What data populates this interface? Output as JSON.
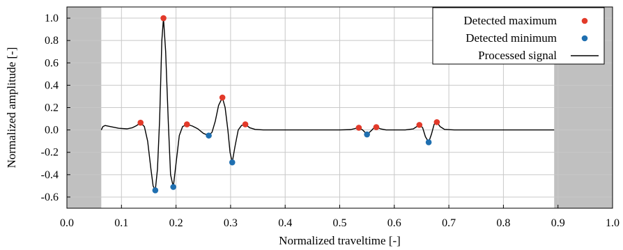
{
  "chart_data": {
    "type": "line",
    "xlabel": "Normalized traveltime [-]",
    "ylabel": "Normalized amplitude [-]",
    "xlim": [
      0.0,
      1.0
    ],
    "ylim": [
      -0.7,
      1.1
    ],
    "xticks": [
      0.0,
      0.1,
      0.2,
      0.3,
      0.4,
      0.5,
      0.6,
      0.7,
      0.8,
      0.9,
      1.0
    ],
    "xtick_labels": [
      "0.0",
      "0.1",
      "0.2",
      "0.3",
      "0.4",
      "0.5",
      "0.6",
      "0.7",
      "0.8",
      "0.9",
      "1.0"
    ],
    "yticks": [
      -0.6,
      -0.4,
      -0.2,
      0.0,
      0.2,
      0.4,
      0.6,
      0.8,
      1.0
    ],
    "ytick_labels": [
      "-0.6",
      "-0.4",
      "-0.2",
      "0.0",
      "0.2",
      "0.4",
      "0.6",
      "0.8",
      "1.0"
    ],
    "grid": true,
    "legend_position": "top-right",
    "shaded_regions": [
      {
        "x": [
          0.0,
          0.063
        ],
        "color": "#c0c0c0"
      },
      {
        "x": [
          0.893,
          1.0
        ],
        "color": "#c0c0c0"
      }
    ],
    "series": [
      {
        "name": "Detected maximum",
        "kind": "scatter",
        "color": "#e23a2a",
        "points": [
          [
            0.135,
            0.065
          ],
          [
            0.177,
            1.0
          ],
          [
            0.22,
            0.05
          ],
          [
            0.285,
            0.29
          ],
          [
            0.327,
            0.05
          ],
          [
            0.535,
            0.02
          ],
          [
            0.567,
            0.025
          ],
          [
            0.646,
            0.045
          ],
          [
            0.678,
            0.07
          ]
        ]
      },
      {
        "name": "Detected minimum",
        "kind": "scatter",
        "color": "#1f6fb0",
        "points": [
          [
            0.162,
            -0.54
          ],
          [
            0.195,
            -0.51
          ],
          [
            0.26,
            -0.05
          ],
          [
            0.303,
            -0.29
          ],
          [
            0.55,
            -0.04
          ],
          [
            0.663,
            -0.11
          ]
        ]
      },
      {
        "name": "Processed signal",
        "kind": "line",
        "color": "#000000",
        "points": [
          [
            0.063,
            0.0
          ],
          [
            0.066,
            0.03
          ],
          [
            0.07,
            0.04
          ],
          [
            0.08,
            0.03
          ],
          [
            0.095,
            0.015
          ],
          [
            0.11,
            0.01
          ],
          [
            0.12,
            0.02
          ],
          [
            0.128,
            0.04
          ],
          [
            0.135,
            0.065
          ],
          [
            0.142,
            0.03
          ],
          [
            0.148,
            -0.1
          ],
          [
            0.154,
            -0.35
          ],
          [
            0.158,
            -0.5
          ],
          [
            0.162,
            -0.54
          ],
          [
            0.166,
            -0.35
          ],
          [
            0.17,
            0.1
          ],
          [
            0.174,
            0.8
          ],
          [
            0.177,
            1.0
          ],
          [
            0.181,
            0.7
          ],
          [
            0.186,
            0.05
          ],
          [
            0.19,
            -0.4
          ],
          [
            0.195,
            -0.51
          ],
          [
            0.2,
            -0.3
          ],
          [
            0.206,
            -0.05
          ],
          [
            0.212,
            0.03
          ],
          [
            0.22,
            0.05
          ],
          [
            0.23,
            0.035
          ],
          [
            0.24,
            0.01
          ],
          [
            0.25,
            -0.03
          ],
          [
            0.26,
            -0.05
          ],
          [
            0.266,
            -0.02
          ],
          [
            0.272,
            0.08
          ],
          [
            0.278,
            0.22
          ],
          [
            0.285,
            0.29
          ],
          [
            0.29,
            0.2
          ],
          [
            0.295,
            0.0
          ],
          [
            0.299,
            -0.2
          ],
          [
            0.303,
            -0.29
          ],
          [
            0.308,
            -0.15
          ],
          [
            0.314,
            0.0
          ],
          [
            0.32,
            0.04
          ],
          [
            0.327,
            0.05
          ],
          [
            0.335,
            0.02
          ],
          [
            0.345,
            0.005
          ],
          [
            0.36,
            0.0
          ],
          [
            0.5,
            0.0
          ],
          [
            0.52,
            0.003
          ],
          [
            0.53,
            0.015
          ],
          [
            0.535,
            0.02
          ],
          [
            0.542,
            0.0
          ],
          [
            0.55,
            -0.04
          ],
          [
            0.557,
            -0.01
          ],
          [
            0.563,
            0.02
          ],
          [
            0.567,
            0.025
          ],
          [
            0.575,
            0.01
          ],
          [
            0.585,
            0.0
          ],
          [
            0.62,
            0.0
          ],
          [
            0.635,
            0.01
          ],
          [
            0.646,
            0.045
          ],
          [
            0.652,
            0.02
          ],
          [
            0.657,
            -0.06
          ],
          [
            0.663,
            -0.11
          ],
          [
            0.668,
            -0.04
          ],
          [
            0.673,
            0.05
          ],
          [
            0.678,
            0.07
          ],
          [
            0.684,
            0.03
          ],
          [
            0.692,
            0.005
          ],
          [
            0.71,
            0.0
          ],
          [
            0.893,
            0.0
          ]
        ]
      }
    ],
    "legend": [
      {
        "label": "Detected maximum",
        "marker": "dot",
        "color": "#e23a2a"
      },
      {
        "label": "Detected minimum",
        "marker": "dot",
        "color": "#1f6fb0"
      },
      {
        "label": "Processed signal",
        "marker": "line",
        "color": "#000000"
      }
    ]
  }
}
